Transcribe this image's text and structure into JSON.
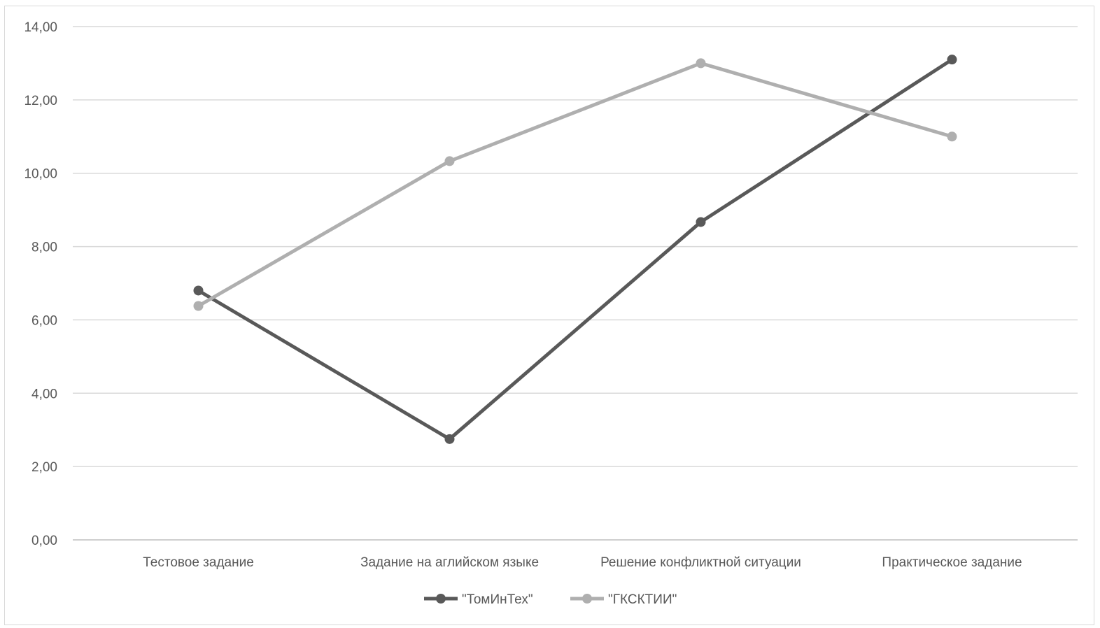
{
  "chart_data": {
    "type": "line",
    "title": "",
    "xlabel": "",
    "ylabel": "",
    "categories": [
      "Тестовое задание",
      "Задание на аглийском языке",
      "Решение конфликтной ситуации",
      "Практическое задание"
    ],
    "series": [
      {
        "name": "\"ТомИнТех\"",
        "values": [
          6.8,
          2.75,
          8.67,
          13.1
        ],
        "color": "#595959"
      },
      {
        "name": "\"ГКСКТИИ\"",
        "values": [
          6.38,
          10.33,
          13.0,
          11.0
        ],
        "color": "#afafaf"
      }
    ],
    "ylim": [
      0,
      14
    ],
    "y_ticks": [
      "0,00",
      "2,00",
      "4,00",
      "6,00",
      "8,00",
      "10,00",
      "12,00",
      "14,00"
    ],
    "grid": true,
    "legend": "bottom-center"
  }
}
